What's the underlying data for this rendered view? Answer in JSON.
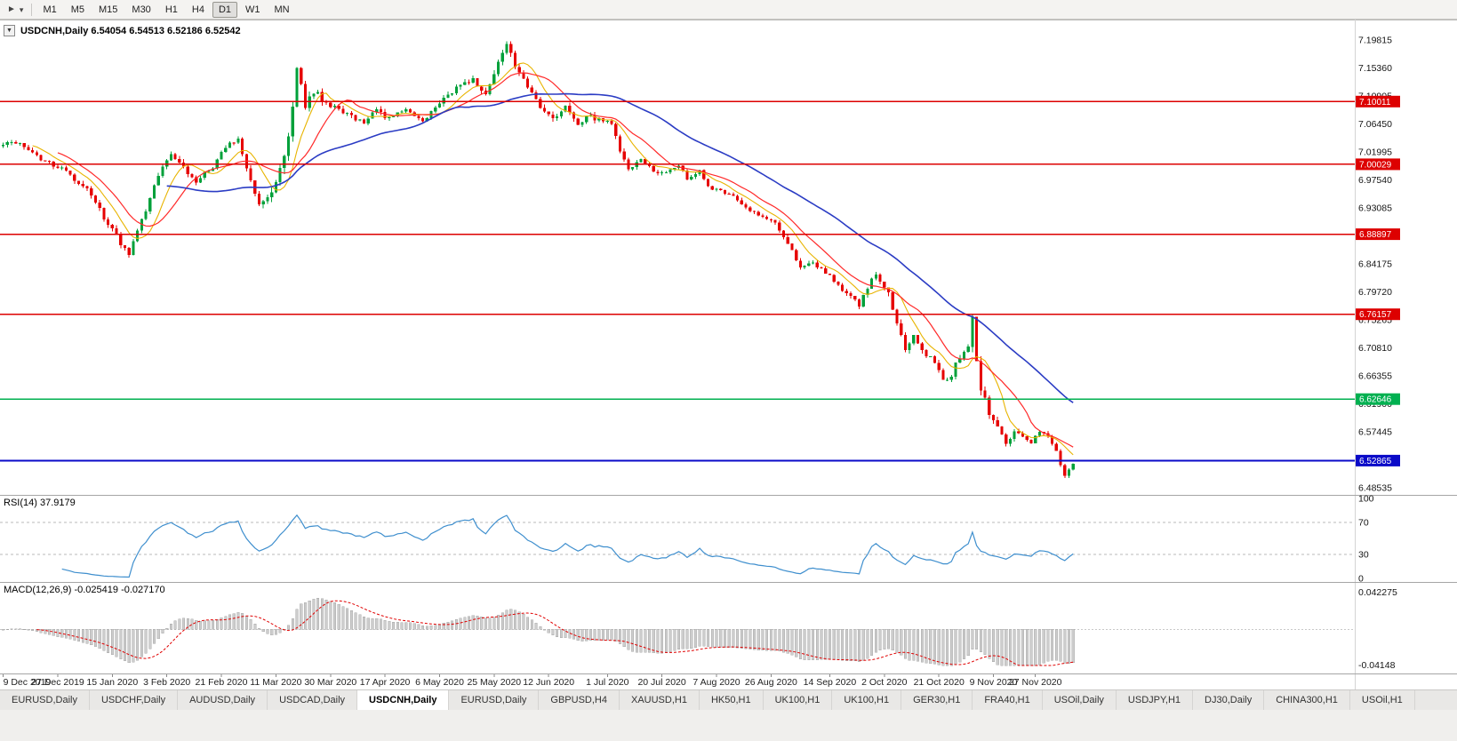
{
  "toolbar": {
    "icons": {
      "pointer": "►",
      "dropdown": "▾"
    },
    "timeframes": [
      "M1",
      "M5",
      "M15",
      "M30",
      "H1",
      "H4",
      "D1",
      "W1",
      "MN"
    ],
    "selected": "D1"
  },
  "chart": {
    "header": {
      "dropdown_glyph": "▼",
      "text": "USDCNH,Daily 6.54054 6.54513 6.52186 6.52542"
    }
  },
  "rsi": {
    "label": "RSI(14) 37.9179",
    "value": 37.9179,
    "levels": [
      70,
      30
    ],
    "axis_labels": [
      {
        "label": "100",
        "v": 100
      },
      {
        "label": "70",
        "v": 70
      },
      {
        "label": "30",
        "v": 30
      },
      {
        "label": "0",
        "v": 0
      }
    ]
  },
  "macd": {
    "label": "MACD(12,26,9) -0.025419 -0.027170",
    "axis_labels": [
      {
        "label": "0.042275",
        "v": 0.042275
      },
      {
        "label": "-0.04148",
        "v": -0.04148
      }
    ]
  },
  "tabs": [
    {
      "label": "EURUSD,Daily",
      "active": false
    },
    {
      "label": "USDCHF,Daily",
      "active": false
    },
    {
      "label": "AUDUSD,Daily",
      "active": false
    },
    {
      "label": "USDCAD,Daily",
      "active": false
    },
    {
      "label": "USDCNH,Daily",
      "active": true
    },
    {
      "label": "EURUSD,Daily",
      "active": false
    },
    {
      "label": "GBPUSD,H4",
      "active": false
    },
    {
      "label": "XAUUSD,H1",
      "active": false
    },
    {
      "label": "HK50,H1",
      "active": false
    },
    {
      "label": "UK100,H1",
      "active": false
    },
    {
      "label": "UK100,H1",
      "active": false
    },
    {
      "label": "GER30,H1",
      "active": false
    },
    {
      "label": "FRA40,H1",
      "active": false
    },
    {
      "label": "USOil,Daily",
      "active": false
    },
    {
      "label": "USDJPY,H1",
      "active": false
    },
    {
      "label": "DJ30,Daily",
      "active": false
    },
    {
      "label": "CHINA300,H1",
      "active": false
    },
    {
      "label": "USOil,H1",
      "active": false
    }
  ],
  "chart_data": {
    "type": "candlestick",
    "symbol": "USDCNH",
    "timeframe": "Daily",
    "ohlc_display": {
      "open": "6.54054",
      "high": "6.54513",
      "low": "6.52186",
      "close": "6.52542"
    },
    "price_axis_ticks": [
      "7.19815",
      "7.15360",
      "7.10905",
      "7.06450",
      "7.01995",
      "6.97540",
      "6.93085",
      "6.88630",
      "6.84175",
      "6.79720",
      "6.75265",
      "6.70810",
      "6.66355",
      "6.61900",
      "6.57445",
      "6.52990",
      "6.48535"
    ],
    "hlines": [
      {
        "price": 7.10011,
        "label": "7.10011",
        "color": "#dd0000"
      },
      {
        "price": 7.00029,
        "label": "7.00029",
        "color": "#dd0000"
      },
      {
        "price": 6.88897,
        "label": "6.88897",
        "color": "#dd0000"
      },
      {
        "price": 6.76157,
        "label": "6.76157",
        "color": "#dd0000"
      },
      {
        "price": 6.62646,
        "label": "6.62646",
        "color": "#00b050"
      },
      {
        "price": 6.52865,
        "label": "6.52865",
        "color": "#0a0ac8"
      }
    ],
    "dates": [
      {
        "label": "9 Dec 2019",
        "i": 0
      },
      {
        "label": "27 Dec 2019",
        "i": 13
      },
      {
        "label": "15 Jan 2020",
        "i": 26
      },
      {
        "label": "3 Feb 2020",
        "i": 39
      },
      {
        "label": "21 Feb 2020",
        "i": 52
      },
      {
        "label": "11 Mar 2020",
        "i": 65
      },
      {
        "label": "30 Mar 2020",
        "i": 78
      },
      {
        "label": "17 Apr 2020",
        "i": 91
      },
      {
        "label": "6 May 2020",
        "i": 104
      },
      {
        "label": "25 May 2020",
        "i": 117
      },
      {
        "label": "12 Jun 2020",
        "i": 130
      },
      {
        "label": "1 Jul 2020",
        "i": 144
      },
      {
        "label": "20 Jul 2020",
        "i": 157
      },
      {
        "label": "7 Aug 2020",
        "i": 170
      },
      {
        "label": "26 Aug 2020",
        "i": 183
      },
      {
        "label": "14 Sep 2020",
        "i": 197
      },
      {
        "label": "2 Oct 2020",
        "i": 210
      },
      {
        "label": "21 Oct 2020",
        "i": 223
      },
      {
        "label": "9 Nov 2020",
        "i": 236
      },
      {
        "label": "27 Nov 2020",
        "i": 246
      }
    ],
    "candles": {
      "count": 256,
      "price_anchors": [
        [
          0,
          7.034
        ],
        [
          5,
          7.03
        ],
        [
          10,
          7.005
        ],
        [
          14,
          6.995
        ],
        [
          20,
          6.96
        ],
        [
          26,
          6.895
        ],
        [
          30,
          6.856
        ],
        [
          33,
          6.91
        ],
        [
          37,
          6.985
        ],
        [
          40,
          7.02
        ],
        [
          42,
          7.0
        ],
        [
          46,
          6.975
        ],
        [
          50,
          6.995
        ],
        [
          53,
          7.03
        ],
        [
          56,
          7.042
        ],
        [
          58,
          6.995
        ],
        [
          61,
          6.938
        ],
        [
          64,
          6.952
        ],
        [
          67,
          7.01
        ],
        [
          69,
          7.085
        ],
        [
          70,
          7.158
        ],
        [
          72,
          7.09
        ],
        [
          74,
          7.118
        ],
        [
          76,
          7.104
        ],
        [
          78,
          7.096
        ],
        [
          82,
          7.08
        ],
        [
          86,
          7.068
        ],
        [
          89,
          7.088
        ],
        [
          92,
          7.072
        ],
        [
          96,
          7.086
        ],
        [
          100,
          7.066
        ],
        [
          103,
          7.094
        ],
        [
          105,
          7.104
        ],
        [
          108,
          7.124
        ],
        [
          112,
          7.134
        ],
        [
          115,
          7.112
        ],
        [
          118,
          7.162
        ],
        [
          120,
          7.194
        ],
        [
          122,
          7.152
        ],
        [
          125,
          7.124
        ],
        [
          128,
          7.094
        ],
        [
          131,
          7.076
        ],
        [
          134,
          7.09
        ],
        [
          137,
          7.066
        ],
        [
          140,
          7.076
        ],
        [
          143,
          7.07
        ],
        [
          145,
          7.064
        ],
        [
          147,
          7.02
        ],
        [
          149,
          6.996
        ],
        [
          152,
          7.006
        ],
        [
          155,
          6.99
        ],
        [
          158,
          6.986
        ],
        [
          161,
          7.0
        ],
        [
          163,
          6.976
        ],
        [
          166,
          6.99
        ],
        [
          168,
          6.966
        ],
        [
          171,
          6.956
        ],
        [
          175,
          6.944
        ],
        [
          178,
          6.926
        ],
        [
          181,
          6.916
        ],
        [
          184,
          6.906
        ],
        [
          187,
          6.876
        ],
        [
          190,
          6.836
        ],
        [
          193,
          6.846
        ],
        [
          196,
          6.826
        ],
        [
          198,
          6.816
        ],
        [
          201,
          6.796
        ],
        [
          204,
          6.776
        ],
        [
          206,
          6.806
        ],
        [
          208,
          6.826
        ],
        [
          211,
          6.796
        ],
        [
          213,
          6.746
        ],
        [
          215,
          6.706
        ],
        [
          217,
          6.726
        ],
        [
          220,
          6.696
        ],
        [
          222,
          6.686
        ],
        [
          224,
          6.656
        ],
        [
          226,
          6.666
        ],
        [
          228,
          6.696
        ],
        [
          230,
          6.706
        ],
        [
          231,
          6.752
        ],
        [
          232,
          6.686
        ],
        [
          233,
          6.646
        ],
        [
          235,
          6.606
        ],
        [
          237,
          6.586
        ],
        [
          239,
          6.556
        ],
        [
          241,
          6.576
        ],
        [
          243,
          6.566
        ],
        [
          245,
          6.556
        ],
        [
          247,
          6.576
        ],
        [
          249,
          6.566
        ],
        [
          251,
          6.546
        ],
        [
          252,
          6.522
        ],
        [
          253,
          6.506
        ],
        [
          254,
          6.514
        ],
        [
          255,
          6.5254
        ]
      ],
      "vol_anchors": [
        [
          0,
          0.01
        ],
        [
          25,
          0.012
        ],
        [
          40,
          0.012
        ],
        [
          60,
          0.012
        ],
        [
          68,
          0.024
        ],
        [
          73,
          0.02
        ],
        [
          80,
          0.012
        ],
        [
          100,
          0.01
        ],
        [
          118,
          0.014
        ],
        [
          125,
          0.012
        ],
        [
          145,
          0.012
        ],
        [
          160,
          0.008
        ],
        [
          185,
          0.009
        ],
        [
          200,
          0.011
        ],
        [
          213,
          0.014
        ],
        [
          225,
          0.01
        ],
        [
          231,
          0.02
        ],
        [
          236,
          0.014
        ],
        [
          245,
          0.008
        ],
        [
          255,
          0.008
        ]
      ]
    },
    "moving_averages": [
      {
        "name": "ma-fast",
        "period": 8,
        "color": "#e8b400",
        "width": 1.1
      },
      {
        "name": "ma-mid",
        "period": 14,
        "color": "#ff2a2a",
        "width": 1.2
      },
      {
        "name": "ma-slow",
        "period": 40,
        "color": "#2b3cc4",
        "width": 1.6
      }
    ],
    "style": {
      "up": "#00a03a",
      "down": "#e60000",
      "rsi_line": "#3f8fce",
      "macd_bar": "#cdcdcd",
      "macd_bar_edge": "#9b9b9b",
      "macd_signal": "#e00000",
      "level_dash": "#b8b8b8",
      "separator": "#a6a6a6",
      "axis_edge": "#d4d4d4"
    }
  }
}
